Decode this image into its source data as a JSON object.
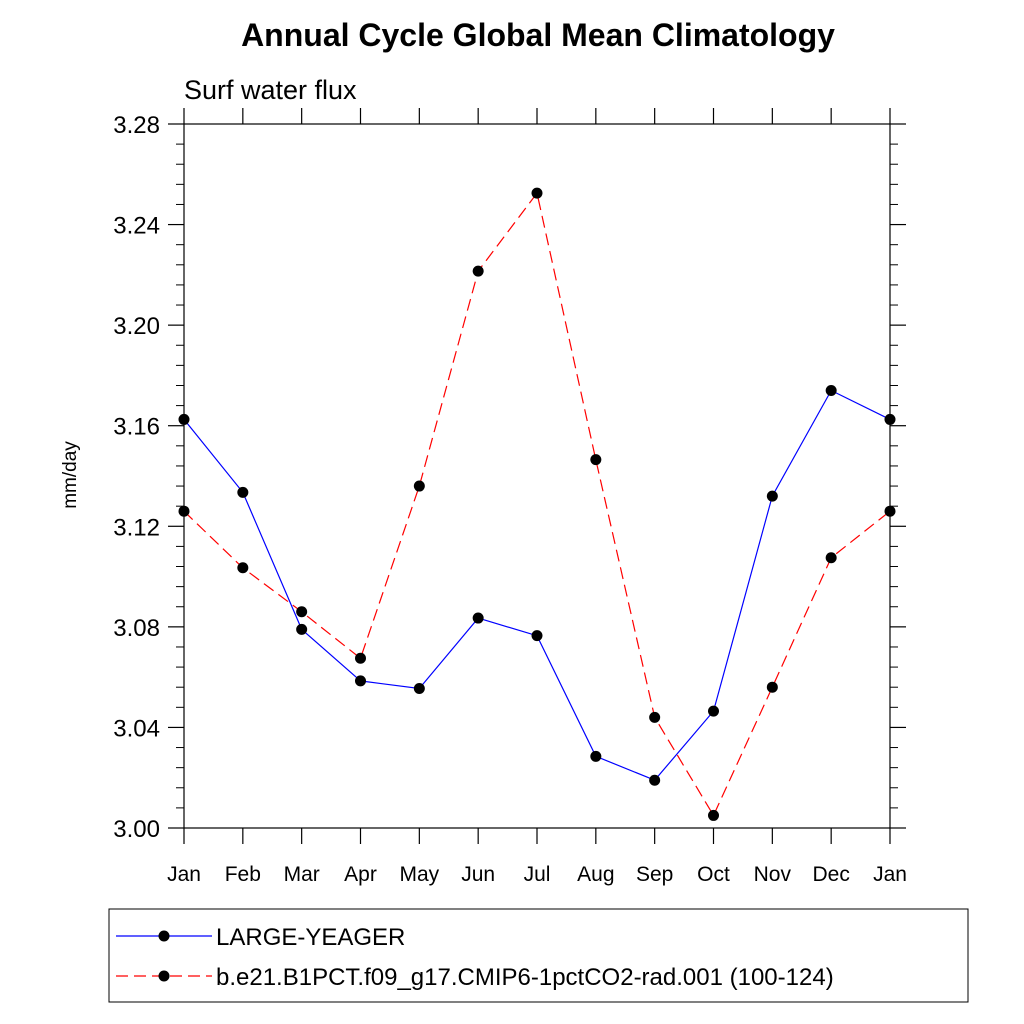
{
  "chart_data": {
    "type": "line",
    "title": "Annual Cycle Global Mean Climatology",
    "subtitle": "Surf water flux",
    "xlabel": "",
    "ylabel": "mm/day",
    "categories": [
      "Jan",
      "Feb",
      "Mar",
      "Apr",
      "May",
      "Jun",
      "Jul",
      "Aug",
      "Sep",
      "Oct",
      "Nov",
      "Dec",
      "Jan"
    ],
    "ylim": [
      3.0,
      3.28
    ],
    "yticks": [
      "3.00",
      "3.04",
      "3.08",
      "3.12",
      "3.16",
      "3.20",
      "3.24",
      "3.28"
    ],
    "ytick_values": [
      3.0,
      3.04,
      3.08,
      3.12,
      3.16,
      3.2,
      3.24,
      3.28
    ],
    "grid": false,
    "legend_position": "bottom",
    "series": [
      {
        "name": "LARGE-YEAGER",
        "color": "#0000ff",
        "line_style": "solid",
        "marker": "filled-circle",
        "values": [
          3.1625,
          3.1335,
          3.079,
          3.0585,
          3.0555,
          3.0835,
          3.0765,
          3.0285,
          3.019,
          3.0465,
          3.132,
          3.174,
          3.1625
        ]
      },
      {
        "name": "b.e21.B1PCT.f09_g17.CMIP6-1pctCO2-rad.001 (100-124)",
        "color": "#ff0000",
        "line_style": "dashed",
        "marker": "filled-circle",
        "values": [
          3.126,
          3.1035,
          3.086,
          3.0675,
          3.136,
          3.2215,
          3.2525,
          3.1465,
          3.044,
          3.005,
          3.056,
          3.1075,
          3.126
        ]
      }
    ]
  }
}
